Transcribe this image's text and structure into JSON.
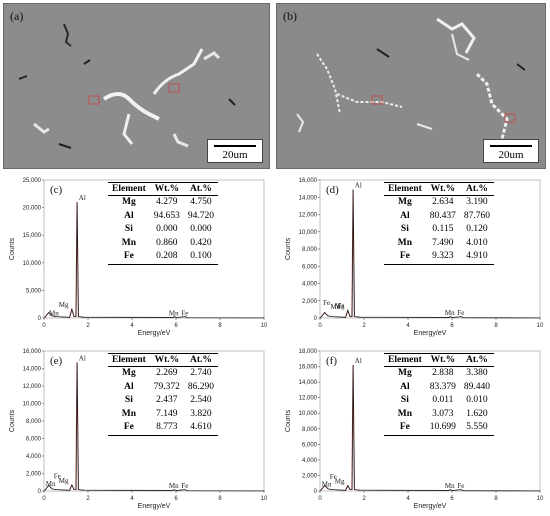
{
  "sem": [
    {
      "label": "(a)",
      "scale": "20um"
    },
    {
      "label": "(b)",
      "scale": "20um"
    }
  ],
  "spectra": [
    {
      "label": "(c)",
      "yticks": [
        "25,000",
        "20,000",
        "15,000",
        "10,000",
        "5,000",
        "0"
      ],
      "ymax": 25000,
      "xticks": [
        "0",
        "2",
        "4",
        "6",
        "8",
        "10"
      ],
      "ylabel": "Counts",
      "xlabel": "Energy/eV",
      "headers": [
        "Element",
        "Wt.%",
        "At.%"
      ],
      "rows": [
        [
          "Mg",
          "4.279",
          "4.750"
        ],
        [
          "Al",
          "94.653",
          "94.720"
        ],
        [
          "Si",
          "0.000",
          "0.000"
        ],
        [
          "Mn",
          "0.860",
          "0.420"
        ],
        [
          "Fe",
          "0.208",
          "0.100"
        ]
      ],
      "peaks": [
        {
          "name": "Al",
          "x": 1.49,
          "y": 21000
        },
        {
          "name": "Mg",
          "x": 1.25,
          "y": 1600
        }
      ],
      "small_labels": [
        {
          "name": "Mn",
          "x": 0.45,
          "y": 250
        },
        {
          "name": "Mn",
          "x": 5.9,
          "y": 250
        },
        {
          "name": "Fe",
          "x": 6.4,
          "y": 250
        }
      ]
    },
    {
      "label": "(d)",
      "yticks": [
        "16,000",
        "14,000",
        "12,000",
        "10,000",
        "8,000",
        "6,000",
        "4,000",
        "2,000",
        "0"
      ],
      "ymax": 16000,
      "xticks": [
        "0",
        "2",
        "4",
        "6",
        "8",
        "10"
      ],
      "ylabel": "Counts",
      "xlabel": "Energy/eV",
      "headers": [
        "Element",
        "Wt.%",
        "At.%"
      ],
      "rows": [
        [
          "Mg",
          "2.634",
          "3.190"
        ],
        [
          "Al",
          "80.437",
          "87.760"
        ],
        [
          "Si",
          "0.115",
          "0.120"
        ],
        [
          "Mn",
          "7.490",
          "4.010"
        ],
        [
          "Fe",
          "9.323",
          "4.910"
        ]
      ],
      "peaks": [
        {
          "name": "Al",
          "x": 1.49,
          "y": 14900
        },
        {
          "name": "Mg",
          "x": 1.25,
          "y": 900
        }
      ],
      "small_labels": [
        {
          "name": "Mn",
          "x": 0.7,
          "y": 900
        },
        {
          "name": "Fe",
          "x": 0.3,
          "y": 1400
        },
        {
          "name": "Fe",
          "x": 0.95,
          "y": 1000
        },
        {
          "name": "Mn",
          "x": 5.9,
          "y": 250
        },
        {
          "name": "Fe",
          "x": 6.4,
          "y": 250
        }
      ]
    },
    {
      "label": "(e)",
      "yticks": [
        "16,000",
        "14,000",
        "12,000",
        "10,000",
        "8,000",
        "6,000",
        "4,000",
        "2,000",
        "0"
      ],
      "ymax": 16000,
      "xticks": [
        "0",
        "2",
        "4",
        "6",
        "8",
        "10"
      ],
      "ylabel": "Counts",
      "xlabel": "Energy/eV",
      "headers": [
        "Element",
        "Wt.%",
        "At.%"
      ],
      "rows": [
        [
          "Mg",
          "2.269",
          "2.740"
        ],
        [
          "Al",
          "79.372",
          "86.290"
        ],
        [
          "Si",
          "2.437",
          "2.540"
        ],
        [
          "Mn",
          "7.149",
          "3.820"
        ],
        [
          "Fe",
          "8.773",
          "4.610"
        ]
      ],
      "peaks": [
        {
          "name": "Al",
          "x": 1.49,
          "y": 14700
        },
        {
          "name": "Mg",
          "x": 1.25,
          "y": 700
        }
      ],
      "small_labels": [
        {
          "name": "Fe",
          "x": 0.6,
          "y": 1300
        },
        {
          "name": "Mn",
          "x": 0.3,
          "y": 450
        },
        {
          "name": "Mn",
          "x": 5.9,
          "y": 250
        },
        {
          "name": "Fe",
          "x": 6.4,
          "y": 250
        }
      ]
    },
    {
      "label": "(f)",
      "yticks": [
        "18,000",
        "16,000",
        "14,000",
        "12,000",
        "10,000",
        "8,000",
        "6,000",
        "4,000",
        "2,000",
        "0"
      ],
      "ymax": 18000,
      "xticks": [
        "0",
        "2",
        "4",
        "6",
        "8",
        "10"
      ],
      "ylabel": "Counts",
      "xlabel": "Energy/eV",
      "headers": [
        "Element",
        "Wt.%",
        "At.%"
      ],
      "rows": [
        [
          "Mg",
          "2.838",
          "3.380"
        ],
        [
          "Al",
          "83.379",
          "89.440"
        ],
        [
          "Si",
          "0.011",
          "0.010"
        ],
        [
          "Mn",
          "3.073",
          "1.620"
        ],
        [
          "Fe",
          "10.699",
          "5.550"
        ]
      ],
      "peaks": [
        {
          "name": "Al",
          "x": 1.49,
          "y": 16200
        },
        {
          "name": "Mg",
          "x": 1.25,
          "y": 700
        }
      ],
      "small_labels": [
        {
          "name": "Fe",
          "x": 0.6,
          "y": 1400
        },
        {
          "name": "Mn",
          "x": 0.3,
          "y": 450
        },
        {
          "name": "Mn",
          "x": 5.9,
          "y": 250
        },
        {
          "name": "Fe",
          "x": 6.4,
          "y": 250
        }
      ]
    }
  ]
}
